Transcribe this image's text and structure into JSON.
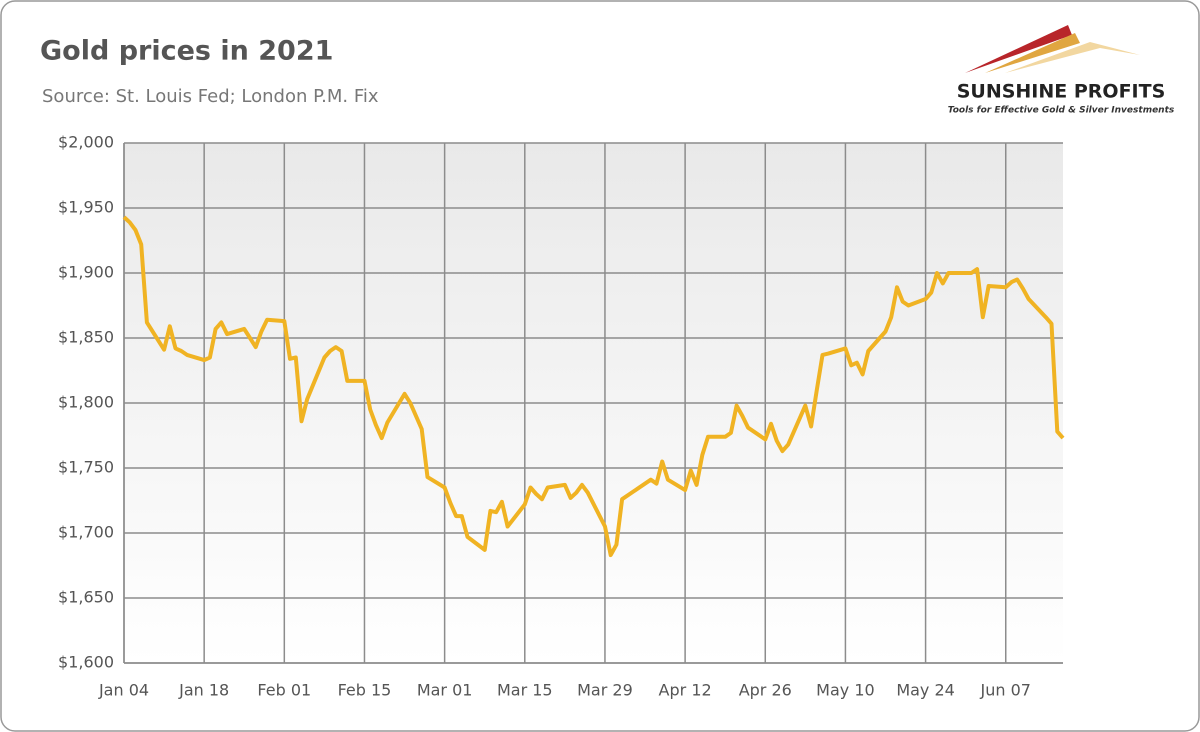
{
  "chart_data": {
    "type": "line",
    "title": "Gold prices in 2021",
    "subtitle": "Source: St. Louis Fed; London P.M. Fix",
    "logo": {
      "name": "SUNSHINE PROFITS",
      "tagline": "Tools for Effective Gold & Silver Investments"
    },
    "x": [
      "Jan 04",
      "Jan 05",
      "Jan 06",
      "Jan 07",
      "Jan 08",
      "Jan 11",
      "Jan 12",
      "Jan 13",
      "Jan 14",
      "Jan 15",
      "Jan 18",
      "Jan 19",
      "Jan 20",
      "Jan 21",
      "Jan 22",
      "Jan 25",
      "Jan 26",
      "Jan 27",
      "Jan 28",
      "Jan 29",
      "Feb 01",
      "Feb 02",
      "Feb 03",
      "Feb 04",
      "Feb 05",
      "Feb 08",
      "Feb 09",
      "Feb 10",
      "Feb 11",
      "Feb 12",
      "Feb 15",
      "Feb 16",
      "Feb 17",
      "Feb 18",
      "Feb 19",
      "Feb 22",
      "Feb 23",
      "Feb 24",
      "Feb 25",
      "Feb 26",
      "Mar 01",
      "Mar 02",
      "Mar 03",
      "Mar 04",
      "Mar 05",
      "Mar 08",
      "Mar 09",
      "Mar 10",
      "Mar 11",
      "Mar 12",
      "Mar 15",
      "Mar 16",
      "Mar 17",
      "Mar 18",
      "Mar 19",
      "Mar 22",
      "Mar 23",
      "Mar 24",
      "Mar 25",
      "Mar 26",
      "Mar 29",
      "Mar 30",
      "Mar 31",
      "Apr 01",
      "Apr 06",
      "Apr 07",
      "Apr 08",
      "Apr 09",
      "Apr 12",
      "Apr 13",
      "Apr 14",
      "Apr 15",
      "Apr 16",
      "Apr 19",
      "Apr 20",
      "Apr 21",
      "Apr 22",
      "Apr 23",
      "Apr 26",
      "Apr 27",
      "Apr 28",
      "Apr 29",
      "Apr 30",
      "May 03",
      "May 04",
      "May 05",
      "May 06",
      "May 07",
      "May 10",
      "May 11",
      "May 12",
      "May 13",
      "May 14",
      "May 17",
      "May 18",
      "May 19",
      "May 20",
      "May 21",
      "May 24",
      "May 25",
      "May 26",
      "May 27",
      "May 28",
      "Jun 01",
      "Jun 02",
      "Jun 03",
      "Jun 04",
      "Jun 07",
      "Jun 08",
      "Jun 09",
      "Jun 10",
      "Jun 11",
      "Jun 14",
      "Jun 15",
      "Jun 16",
      "Jun 17"
    ],
    "series": [
      {
        "name": "Gold price",
        "color": "#f0b323",
        "values": [
          1943,
          1939,
          1933,
          1922,
          1862,
          1841,
          1859,
          1842,
          1840,
          1837,
          1833,
          1835,
          1857,
          1862,
          1853,
          1857,
          1850,
          1843,
          1855,
          1864,
          1863,
          1834,
          1835,
          1786,
          1803,
          1835,
          1840,
          1843,
          1840,
          1817,
          1817,
          1795,
          1783,
          1773,
          1785,
          1807,
          1800,
          1790,
          1780,
          1743,
          1735,
          1723,
          1713,
          1713,
          1697,
          1687,
          1717,
          1716,
          1724,
          1705,
          1722,
          1735,
          1730,
          1726,
          1735,
          1737,
          1727,
          1731,
          1737,
          1731,
          1705,
          1683,
          1691,
          1726,
          1741,
          1738,
          1755,
          1741,
          1733,
          1748,
          1737,
          1760,
          1774,
          1774,
          1777,
          1798,
          1790,
          1781,
          1772,
          1784,
          1771,
          1763,
          1768,
          1798,
          1782,
          1810,
          1837,
          1838,
          1842,
          1829,
          1831,
          1822,
          1840,
          1855,
          1866,
          1889,
          1878,
          1875,
          1880,
          1885,
          1900,
          1892,
          1900,
          1900,
          1903,
          1866,
          1890,
          1889,
          1893,
          1895,
          1888,
          1880,
          1866,
          1861,
          1778,
          1773
        ]
      }
    ],
    "xlim": [
      "Jan 04",
      "Jun 17"
    ],
    "xticks": [
      "Jan 04",
      "Jan 18",
      "Feb 01",
      "Feb 15",
      "Mar 01",
      "Mar 15",
      "Mar 29",
      "Apr 12",
      "Apr 26",
      "May 10",
      "May 24",
      "Jun 07"
    ],
    "ylim": [
      1600,
      2000
    ],
    "yticks": [
      {
        "value": 1600,
        "label": "$1,600"
      },
      {
        "value": 1650,
        "label": "$1,650"
      },
      {
        "value": 1700,
        "label": "$1,700"
      },
      {
        "value": 1750,
        "label": "$1,750"
      },
      {
        "value": 1800,
        "label": "$1,800"
      },
      {
        "value": 1850,
        "label": "$1,850"
      },
      {
        "value": 1900,
        "label": "$1,900"
      },
      {
        "value": 1950,
        "label": "$1,950"
      },
      {
        "value": 2000,
        "label": "$2,000"
      }
    ],
    "grid": true
  }
}
